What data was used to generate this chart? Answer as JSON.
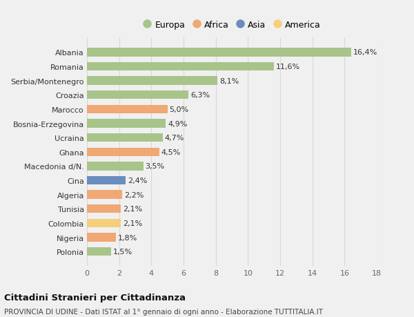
{
  "categories": [
    "Albania",
    "Romania",
    "Serbia/Montenegro",
    "Croazia",
    "Marocco",
    "Bosnia-Erzegovina",
    "Ucraina",
    "Ghana",
    "Macedonia d/N.",
    "Cina",
    "Algeria",
    "Tunisia",
    "Colombia",
    "Nigeria",
    "Polonia"
  ],
  "values": [
    16.4,
    11.6,
    8.1,
    6.3,
    5.0,
    4.9,
    4.7,
    4.5,
    3.5,
    2.4,
    2.2,
    2.1,
    2.1,
    1.8,
    1.5
  ],
  "labels": [
    "16,4%",
    "11,6%",
    "8,1%",
    "6,3%",
    "5,0%",
    "4,9%",
    "4,7%",
    "4,5%",
    "3,5%",
    "2,4%",
    "2,2%",
    "2,1%",
    "2,1%",
    "1,8%",
    "1,5%"
  ],
  "continents": [
    "Europa",
    "Europa",
    "Europa",
    "Europa",
    "Africa",
    "Europa",
    "Europa",
    "Africa",
    "Europa",
    "Asia",
    "Africa",
    "Africa",
    "America",
    "Africa",
    "Europa"
  ],
  "colors": {
    "Europa": "#a8c48a",
    "Africa": "#f0a875",
    "Asia": "#6b8cbf",
    "America": "#f5d07a"
  },
  "legend_order": [
    "Europa",
    "Africa",
    "Asia",
    "America"
  ],
  "xlim": [
    0,
    18
  ],
  "xticks": [
    0,
    2,
    4,
    6,
    8,
    10,
    12,
    14,
    16,
    18
  ],
  "title": "Cittadini Stranieri per Cittadinanza",
  "subtitle": "PROVINCIA DI UDINE - Dati ISTAT al 1° gennaio di ogni anno - Elaborazione TUTTITALIA.IT",
  "bg_color": "#f0f0f0",
  "grid_color": "#d8d8d8",
  "bar_height": 0.6,
  "label_fontsize": 8,
  "ytick_fontsize": 8,
  "xtick_fontsize": 8,
  "legend_fontsize": 9,
  "title_fontsize": 9.5,
  "subtitle_fontsize": 7.5
}
